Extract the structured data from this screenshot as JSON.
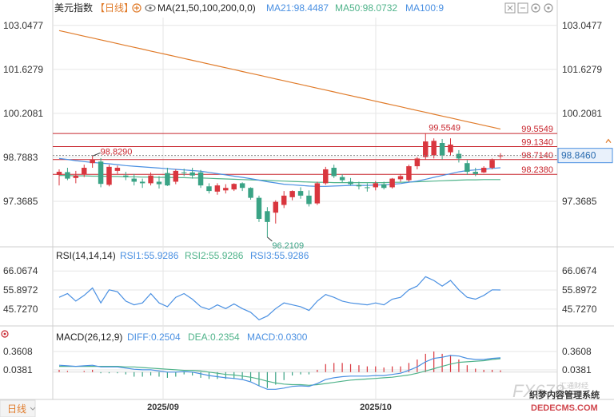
{
  "colors": {
    "up": "#d9363e",
    "down": "#3aa385",
    "ma21": "#4a90e2",
    "ma50": "#4fb38a",
    "ma100": "#e07b2a",
    "ref": "#c8262e",
    "grid": "#e6e6e6",
    "text": "#333333",
    "rsi": "#4a90e2"
  },
  "header": {
    "title": "美元指数",
    "period": "【日线】",
    "ma_label": "MA(21,50,100,200,0,0)",
    "ma21": "MA21:98.4487",
    "ma50": "MA50:98.0732",
    "ma100": "MA100:9"
  },
  "price_axis": {
    "ticks": [
      "103.0477",
      "101.6279",
      "100.2081",
      "98.7883",
      "97.3685"
    ],
    "ylim": [
      96.0,
      103.3
    ]
  },
  "ref_lines": [
    {
      "label": "99.5549",
      "value": 99.5549
    },
    {
      "label": "99.1340",
      "value": 99.134
    },
    {
      "label": "98.7140",
      "value": 98.714
    },
    {
      "label": "98.2380",
      "value": 98.238
    }
  ],
  "annotations": {
    "high_prev": "98.8290",
    "low": "96.2109",
    "high": "99.5549",
    "current": "98.8460",
    "current_value": 98.846
  },
  "rsi": {
    "header": "RSI(14,14,14)",
    "rsi1": "RSI1:55.9286",
    "rsi2": "RSI2:55.9286",
    "rsi3": "RSI3:55.9286",
    "ticks": [
      "66.0674",
      "55.8972",
      "45.7270"
    ],
    "ylim": [
      38,
      70
    ]
  },
  "macd": {
    "header": "MACD(26,12,9)",
    "diff": "DIFF:0.2504",
    "dea": "DEA:0.2354",
    "macd": "MACD:0.0300",
    "ticks": [
      "0.3608",
      "0.0381"
    ],
    "ylim": [
      -0.45,
      0.5
    ]
  },
  "x_labels": [
    "2025/09",
    "2025/10"
  ],
  "footer": {
    "tab": "日线"
  },
  "watermark": {
    "brand": "FX678",
    "site": "汇通财经",
    "tagline": "织梦内容管理系统",
    "url": "DEDECMS.COM"
  },
  "chart_data": {
    "type": "candlestick",
    "title": "美元指数 日线",
    "candles": [
      {
        "o": 98.22,
        "h": 98.4,
        "l": 97.88,
        "c": 98.32
      },
      {
        "o": 98.31,
        "h": 98.45,
        "l": 98.05,
        "c": 98.1
      },
      {
        "o": 98.12,
        "h": 98.35,
        "l": 97.95,
        "c": 98.2
      },
      {
        "o": 98.23,
        "h": 98.55,
        "l": 98.15,
        "c": 98.45
      },
      {
        "o": 98.6,
        "h": 98.83,
        "l": 98.45,
        "c": 98.72
      },
      {
        "o": 98.65,
        "h": 98.76,
        "l": 97.82,
        "c": 97.93
      },
      {
        "o": 97.9,
        "h": 98.55,
        "l": 97.85,
        "c": 98.48
      },
      {
        "o": 98.35,
        "h": 98.52,
        "l": 98.25,
        "c": 98.45
      },
      {
        "o": 98.2,
        "h": 98.32,
        "l": 98.05,
        "c": 98.15
      },
      {
        "o": 98.1,
        "h": 98.25,
        "l": 97.88,
        "c": 98.0
      },
      {
        "o": 98.0,
        "h": 98.1,
        "l": 97.8,
        "c": 97.95
      },
      {
        "o": 97.95,
        "h": 98.3,
        "l": 97.88,
        "c": 98.2
      },
      {
        "o": 98.0,
        "h": 98.18,
        "l": 97.78,
        "c": 97.92
      },
      {
        "o": 98.28,
        "h": 98.45,
        "l": 97.86,
        "c": 97.88
      },
      {
        "o": 98.0,
        "h": 98.4,
        "l": 97.92,
        "c": 98.35
      },
      {
        "o": 98.3,
        "h": 98.42,
        "l": 98.18,
        "c": 98.28
      },
      {
        "o": 98.3,
        "h": 98.45,
        "l": 98.1,
        "c": 98.2
      },
      {
        "o": 98.3,
        "h": 98.38,
        "l": 97.8,
        "c": 97.88
      },
      {
        "o": 97.85,
        "h": 97.95,
        "l": 97.62,
        "c": 97.7
      },
      {
        "o": 97.68,
        "h": 97.95,
        "l": 97.58,
        "c": 97.88
      },
      {
        "o": 97.72,
        "h": 97.92,
        "l": 97.62,
        "c": 97.8
      },
      {
        "o": 97.75,
        "h": 97.95,
        "l": 97.7,
        "c": 97.93
      },
      {
        "o": 97.95,
        "h": 97.98,
        "l": 97.7,
        "c": 97.8
      },
      {
        "o": 97.8,
        "h": 97.82,
        "l": 97.42,
        "c": 97.48
      },
      {
        "o": 97.48,
        "h": 97.55,
        "l": 96.7,
        "c": 96.8
      },
      {
        "o": 97.05,
        "h": 97.18,
        "l": 96.21,
        "c": 96.7
      },
      {
        "o": 97.0,
        "h": 97.4,
        "l": 96.65,
        "c": 97.35
      },
      {
        "o": 97.25,
        "h": 97.7,
        "l": 97.15,
        "c": 97.55
      },
      {
        "o": 97.5,
        "h": 97.72,
        "l": 97.4,
        "c": 97.7
      },
      {
        "o": 97.7,
        "h": 97.82,
        "l": 97.45,
        "c": 97.55
      },
      {
        "o": 97.55,
        "h": 97.72,
        "l": 97.2,
        "c": 97.28
      },
      {
        "o": 97.3,
        "h": 98.0,
        "l": 97.25,
        "c": 97.95
      },
      {
        "o": 97.95,
        "h": 98.48,
        "l": 97.9,
        "c": 98.4
      },
      {
        "o": 98.45,
        "h": 98.55,
        "l": 98.12,
        "c": 98.18
      },
      {
        "o": 98.15,
        "h": 98.24,
        "l": 97.98,
        "c": 98.05
      },
      {
        "o": 98.0,
        "h": 98.12,
        "l": 97.88,
        "c": 97.92
      },
      {
        "o": 97.9,
        "h": 98.0,
        "l": 97.75,
        "c": 97.85
      },
      {
        "o": 97.82,
        "h": 97.95,
        "l": 97.68,
        "c": 97.8
      },
      {
        "o": 97.82,
        "h": 98.02,
        "l": 97.72,
        "c": 97.95
      },
      {
        "o": 97.92,
        "h": 98.0,
        "l": 97.75,
        "c": 97.8
      },
      {
        "o": 97.82,
        "h": 98.12,
        "l": 97.78,
        "c": 98.1
      },
      {
        "o": 98.08,
        "h": 98.25,
        "l": 98.0,
        "c": 98.18
      },
      {
        "o": 98.05,
        "h": 98.55,
        "l": 98.0,
        "c": 98.5
      },
      {
        "o": 98.5,
        "h": 98.8,
        "l": 98.4,
        "c": 98.75
      },
      {
        "o": 98.8,
        "h": 99.55,
        "l": 98.72,
        "c": 99.3
      },
      {
        "o": 98.85,
        "h": 99.4,
        "l": 98.75,
        "c": 99.32
      },
      {
        "o": 99.25,
        "h": 99.38,
        "l": 98.72,
        "c": 98.85
      },
      {
        "o": 98.95,
        "h": 99.4,
        "l": 98.85,
        "c": 99.2
      },
      {
        "o": 98.9,
        "h": 99.02,
        "l": 98.62,
        "c": 98.75
      },
      {
        "o": 98.6,
        "h": 98.7,
        "l": 98.22,
        "c": 98.32
      },
      {
        "o": 98.32,
        "h": 98.45,
        "l": 98.18,
        "c": 98.25
      },
      {
        "o": 98.3,
        "h": 98.5,
        "l": 98.28,
        "c": 98.45
      },
      {
        "o": 98.45,
        "h": 98.75,
        "l": 98.4,
        "c": 98.7
      },
      {
        "o": 98.82,
        "h": 98.92,
        "l": 98.74,
        "c": 98.85
      }
    ],
    "ma21": [
      98.75,
      98.72,
      98.68,
      98.65,
      98.62,
      98.6,
      98.58,
      98.55,
      98.52,
      98.5,
      98.48,
      98.46,
      98.44,
      98.42,
      98.4,
      98.38,
      98.36,
      98.34,
      98.3,
      98.26,
      98.22,
      98.18,
      98.14,
      98.1,
      98.05,
      98.0,
      97.96,
      97.92,
      97.9,
      97.88,
      97.86,
      97.85,
      97.85,
      97.86,
      97.87,
      97.88,
      97.88,
      97.88,
      97.89,
      97.9,
      97.92,
      97.94,
      97.98,
      98.02,
      98.08,
      98.14,
      98.2,
      98.26,
      98.32,
      98.36,
      98.38,
      98.4,
      98.43,
      98.45
    ],
    "ma50": [
      98.2,
      98.2,
      98.19,
      98.19,
      98.18,
      98.18,
      98.17,
      98.17,
      98.16,
      98.16,
      98.15,
      98.15,
      98.14,
      98.14,
      98.13,
      98.13,
      98.12,
      98.12,
      98.11,
      98.1,
      98.09,
      98.08,
      98.07,
      98.06,
      98.05,
      98.04,
      98.03,
      98.02,
      98.01,
      98.0,
      97.99,
      97.98,
      97.98,
      97.97,
      97.97,
      97.97,
      97.97,
      97.97,
      97.97,
      97.97,
      97.98,
      97.98,
      97.99,
      98.0,
      98.01,
      98.02,
      98.03,
      98.04,
      98.05,
      98.06,
      98.06,
      98.07,
      98.07,
      98.07
    ],
    "ma100": [
      102.88,
      102.82,
      102.76,
      102.7,
      102.64,
      102.58,
      102.52,
      102.46,
      102.4,
      102.34,
      102.28,
      102.22,
      102.16,
      102.1,
      102.04,
      101.98,
      101.92,
      101.86,
      101.8,
      101.74,
      101.68,
      101.62,
      101.56,
      101.5,
      101.44,
      101.38,
      101.32,
      101.26,
      101.2,
      101.14,
      101.08,
      101.02,
      100.96,
      100.9,
      100.84,
      100.78,
      100.72,
      100.66,
      100.6,
      100.54,
      100.48,
      100.42,
      100.36,
      100.3,
      100.24,
      100.18,
      100.12,
      100.06,
      100.0,
      99.94,
      99.88,
      99.82,
      99.76,
      99.7
    ],
    "rsi": [
      52.0,
      54.0,
      50.0,
      53.0,
      57.0,
      49.0,
      56.0,
      55.0,
      50.0,
      48.0,
      49.0,
      54.0,
      49.0,
      47.0,
      52.0,
      54.0,
      51.0,
      47.0,
      45.5,
      48.0,
      46.0,
      48.5,
      46.0,
      44.0,
      40.0,
      42.0,
      46.0,
      49.0,
      48.0,
      47.0,
      45.0,
      50.0,
      53.5,
      52.0,
      50.0,
      49.0,
      48.5,
      48.0,
      49.0,
      48.0,
      51.0,
      52.0,
      56.0,
      58.0,
      63.0,
      61.0,
      58.0,
      61.0,
      56.0,
      52.0,
      51.0,
      53.0,
      56.0,
      55.93
    ],
    "macd_diff": [
      0.12,
      0.11,
      0.1,
      0.11,
      0.12,
      0.09,
      0.09,
      0.09,
      0.07,
      0.05,
      0.04,
      0.04,
      0.02,
      0.0,
      0.0,
      0.01,
      0.0,
      -0.03,
      -0.06,
      -0.08,
      -0.1,
      -0.11,
      -0.13,
      -0.17,
      -0.24,
      -0.3,
      -0.3,
      -0.28,
      -0.25,
      -0.24,
      -0.25,
      -0.2,
      -0.13,
      -0.1,
      -0.08,
      -0.07,
      -0.07,
      -0.07,
      -0.06,
      -0.06,
      -0.04,
      -0.02,
      0.03,
      0.09,
      0.18,
      0.24,
      0.26,
      0.29,
      0.28,
      0.24,
      0.22,
      0.22,
      0.24,
      0.25
    ],
    "macd_dea": [
      0.1,
      0.1,
      0.1,
      0.1,
      0.1,
      0.1,
      0.1,
      0.1,
      0.09,
      0.09,
      0.08,
      0.07,
      0.06,
      0.05,
      0.04,
      0.03,
      0.03,
      0.02,
      0.0,
      -0.02,
      -0.04,
      -0.05,
      -0.07,
      -0.09,
      -0.12,
      -0.16,
      -0.19,
      -0.21,
      -0.22,
      -0.22,
      -0.23,
      -0.22,
      -0.2,
      -0.18,
      -0.16,
      -0.14,
      -0.13,
      -0.12,
      -0.11,
      -0.1,
      -0.09,
      -0.07,
      -0.05,
      -0.02,
      0.02,
      0.06,
      0.1,
      0.14,
      0.17,
      0.18,
      0.19,
      0.2,
      0.22,
      0.235
    ],
    "macd_hist": [
      0.04,
      0.02,
      0.0,
      0.02,
      0.04,
      -0.02,
      -0.02,
      -0.02,
      -0.04,
      -0.08,
      -0.08,
      -0.06,
      -0.08,
      -0.1,
      -0.08,
      -0.04,
      -0.06,
      -0.1,
      -0.12,
      -0.12,
      -0.12,
      -0.12,
      -0.12,
      -0.16,
      -0.24,
      -0.28,
      -0.22,
      -0.14,
      -0.06,
      -0.04,
      -0.04,
      0.04,
      0.14,
      0.16,
      0.16,
      0.14,
      0.12,
      0.1,
      0.1,
      0.08,
      0.1,
      0.1,
      0.16,
      0.22,
      0.32,
      0.36,
      0.32,
      0.3,
      0.22,
      0.12,
      0.06,
      0.04,
      0.04,
      0.03
    ]
  }
}
